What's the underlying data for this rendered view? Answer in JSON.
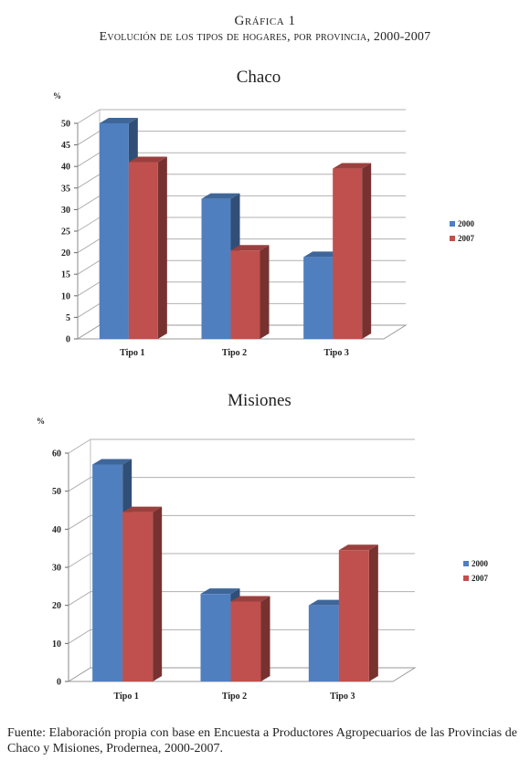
{
  "header": {
    "figure_label": "Gráfica 1",
    "figure_title": "Evolución de los tipos de hogares, por provincia, 2000-2007"
  },
  "colors": {
    "2000": "#4f7fbf",
    "2007": "#c0504d"
  },
  "chart_data": [
    {
      "type": "bar",
      "title": "Chaco",
      "ylabel": "%",
      "categories": [
        "Tipo 1",
        "Tipo 2",
        "Tipo 3"
      ],
      "series": [
        {
          "name": "2000",
          "values": [
            50,
            32.5,
            19
          ]
        },
        {
          "name": "2007",
          "values": [
            41,
            20.5,
            39.5
          ]
        }
      ],
      "ylim": [
        0,
        50
      ],
      "yticks": [
        "0",
        "5",
        "10",
        "15",
        "20",
        "25",
        "30",
        "35",
        "40",
        "45",
        "50"
      ],
      "grid": true,
      "legend": "right"
    },
    {
      "type": "bar",
      "title": "Misiones",
      "ylabel": "%",
      "categories": [
        "Tipo 1",
        "Tipo 2",
        "Tipo 3"
      ],
      "series": [
        {
          "name": "2000",
          "values": [
            57,
            23,
            20
          ]
        },
        {
          "name": "2007",
          "values": [
            44.5,
            21,
            34.5
          ]
        }
      ],
      "ylim": [
        0,
        60
      ],
      "yticks": [
        "0",
        "10",
        "20",
        "30",
        "40",
        "50",
        "60"
      ],
      "grid": true,
      "legend": "right"
    }
  ],
  "source": "Fuente: Elaboración propia con base en Encuesta a Productores Agropecuarios de las Provincias de Chaco y Misiones, Prodernea, 2000-2007."
}
